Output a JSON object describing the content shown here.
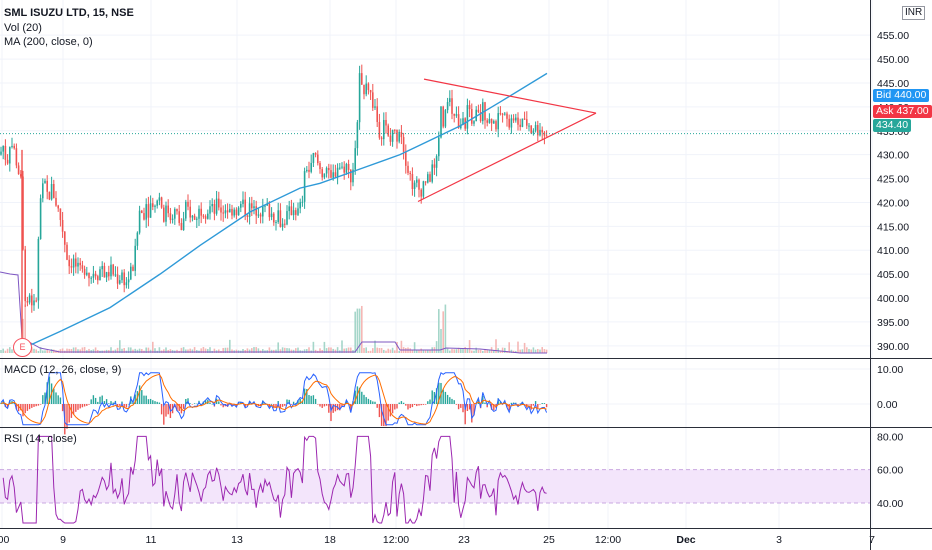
{
  "chart_data": {
    "type": "candlestick",
    "symbol": "SML ISUZU LTD, 15, NSE",
    "currency": "INR",
    "indicators": {
      "volume_label": "Vol (20)",
      "ma_label": "MA (200, close, 0)",
      "macd_label": "MACD (12, 26, close, 9)",
      "rsi_label": "RSI (14, close)"
    },
    "price_axis": {
      "ticks": [
        "455.00",
        "450.00",
        "445.00",
        "440.00",
        "435.00",
        "430.00",
        "425.00",
        "420.00",
        "415.00",
        "410.00",
        "405.00",
        "400.00",
        "395.00",
        "390.00"
      ],
      "ylim": [
        387.5,
        458
      ]
    },
    "macd_axis": {
      "ticks": [
        "10.00",
        "0.00"
      ]
    },
    "rsi_axis": {
      "ticks": [
        "80.00",
        "60.00",
        "40.00"
      ],
      "band": [
        40,
        60
      ]
    },
    "x_ticks": [
      ":00",
      "9",
      "11",
      "13",
      "18",
      "12:00",
      "23",
      "25",
      "12:00",
      "Dec",
      "3",
      "7"
    ],
    "price_tags": {
      "bid": {
        "label": "Bid",
        "value": "440.00",
        "color": "#2196f3"
      },
      "ask": {
        "label": "Ask",
        "value": "437.00",
        "color": "#f23645"
      },
      "last": {
        "value": "434.40",
        "color": "#26a69a"
      }
    },
    "event_marker": "E",
    "close_path": [
      [
        0,
        430
      ],
      [
        3,
        432
      ],
      [
        7,
        428
      ],
      [
        10,
        433
      ],
      [
        14,
        431
      ],
      [
        18,
        427
      ],
      [
        21,
        424
      ],
      [
        24,
        402
      ],
      [
        27,
        399
      ],
      [
        30,
        401
      ],
      [
        33,
        398
      ],
      [
        36,
        399
      ],
      [
        40,
        420
      ],
      [
        44,
        424
      ],
      [
        48,
        421
      ],
      [
        52,
        423
      ],
      [
        56,
        420
      ],
      [
        60,
        417
      ],
      [
        63,
        414
      ],
      [
        66,
        410
      ],
      [
        69,
        407
      ],
      [
        73,
        408
      ],
      [
        77,
        406
      ],
      [
        82,
        405
      ],
      [
        86,
        407
      ],
      [
        90,
        404
      ],
      [
        94,
        406
      ],
      [
        98,
        405
      ],
      [
        102,
        407
      ],
      [
        106,
        404
      ],
      [
        110,
        406
      ],
      [
        114,
        405
      ],
      [
        118,
        404
      ],
      [
        122,
        405
      ],
      [
        126,
        403
      ],
      [
        130,
        405
      ],
      [
        134,
        407
      ],
      [
        137,
        413
      ],
      [
        140,
        419
      ],
      [
        143,
        417
      ],
      [
        146,
        420
      ],
      [
        149,
        418
      ],
      [
        152,
        421
      ],
      [
        155,
        419
      ],
      [
        158,
        422
      ],
      [
        161,
        420
      ],
      [
        164,
        417
      ],
      [
        167,
        419
      ],
      [
        170,
        417
      ],
      [
        173,
        418
      ],
      [
        176,
        418
      ],
      [
        179,
        416
      ],
      [
        182,
        414
      ],
      [
        186,
        419
      ],
      [
        190,
        418
      ],
      [
        194,
        416
      ],
      [
        198,
        418
      ],
      [
        202,
        419
      ],
      [
        206,
        418
      ],
      [
        210,
        419
      ],
      [
        214,
        418
      ],
      [
        218,
        420
      ],
      [
        222,
        418
      ],
      [
        226,
        419
      ],
      [
        230,
        418
      ],
      [
        234,
        419
      ],
      [
        238,
        418
      ],
      [
        242,
        420
      ],
      [
        246,
        418
      ],
      [
        250,
        419
      ],
      [
        254,
        418
      ],
      [
        258,
        419
      ],
      [
        262,
        418
      ],
      [
        266,
        419
      ],
      [
        270,
        418
      ],
      [
        274,
        417
      ],
      [
        278,
        418
      ],
      [
        282,
        415
      ],
      [
        286,
        417
      ],
      [
        290,
        418
      ],
      [
        294,
        419
      ],
      [
        298,
        418
      ],
      [
        302,
        420
      ],
      [
        306,
        428
      ],
      [
        310,
        426
      ],
      [
        314,
        430
      ],
      [
        318,
        428
      ],
      [
        322,
        426
      ],
      [
        326,
        428
      ],
      [
        330,
        424
      ],
      [
        334,
        426
      ],
      [
        338,
        428
      ],
      [
        342,
        427
      ],
      [
        346,
        428
      ],
      [
        350,
        425
      ],
      [
        354,
        428
      ],
      [
        357,
        437
      ],
      [
        360,
        447
      ],
      [
        363,
        443
      ],
      [
        366,
        446
      ],
      [
        369,
        444
      ],
      [
        372,
        441
      ],
      [
        375,
        440
      ],
      [
        378,
        436
      ],
      [
        381,
        434
      ],
      [
        384,
        438
      ],
      [
        387,
        434
      ],
      [
        390,
        432
      ],
      [
        393,
        436
      ],
      [
        396,
        433
      ],
      [
        399,
        436
      ],
      [
        402,
        434
      ],
      [
        405,
        430
      ],
      [
        408,
        427
      ],
      [
        411,
        425
      ],
      [
        414,
        423
      ],
      [
        417,
        424
      ],
      [
        420,
        422
      ],
      [
        423,
        424
      ],
      [
        426,
        425
      ],
      [
        429,
        424
      ],
      [
        432,
        428
      ],
      [
        435,
        426
      ],
      [
        438,
        432
      ],
      [
        441,
        440
      ],
      [
        444,
        436
      ],
      [
        447,
        443
      ],
      [
        450,
        441
      ],
      [
        453,
        436
      ],
      [
        456,
        439
      ],
      [
        459,
        434
      ],
      [
        462,
        437
      ],
      [
        465,
        436
      ],
      [
        468,
        441
      ],
      [
        471,
        438
      ],
      [
        474,
        436
      ],
      [
        477,
        439
      ],
      [
        480,
        437
      ],
      [
        483,
        440
      ],
      [
        486,
        438
      ],
      [
        489,
        437
      ],
      [
        492,
        438
      ],
      [
        495,
        436
      ],
      [
        498,
        437
      ],
      [
        501,
        439
      ],
      [
        504,
        437
      ],
      [
        507,
        439
      ],
      [
        510,
        436
      ],
      [
        513,
        438
      ],
      [
        516,
        437
      ],
      [
        519,
        435
      ],
      [
        522,
        438
      ],
      [
        525,
        436
      ],
      [
        528,
        437
      ],
      [
        531,
        435
      ],
      [
        534,
        436
      ],
      [
        537,
        435
      ],
      [
        540,
        436
      ],
      [
        543,
        434.4
      ],
      [
        547,
        434.4
      ]
    ],
    "ma200": [
      [
        18,
        389
      ],
      [
        60,
        393
      ],
      [
        110,
        398
      ],
      [
        160,
        405
      ],
      [
        200,
        411
      ],
      [
        250,
        418
      ],
      [
        300,
        423
      ],
      [
        320,
        424
      ],
      [
        360,
        427
      ],
      [
        400,
        430
      ],
      [
        420,
        432
      ],
      [
        460,
        436
      ],
      [
        500,
        441
      ],
      [
        547,
        447
      ]
    ],
    "triangle": {
      "upper": [
        [
          424,
          445.8
        ],
        [
          596,
          438.7
        ]
      ],
      "lower": [
        [
          418,
          420.2
        ],
        [
          596,
          438.7
        ]
      ]
    }
  }
}
